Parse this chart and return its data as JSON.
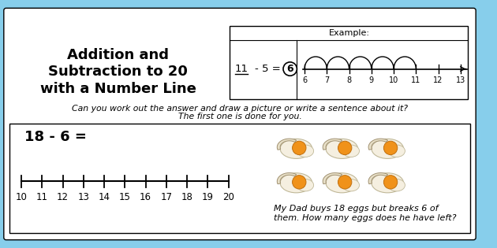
{
  "bg_color": "#87CEEB",
  "white": "#FFFFFF",
  "black": "#000000",
  "title_text_line1": "Addition and",
  "title_text_line2": "Subtraction to 20",
  "title_text_line3": "with a Number Line",
  "example_label": "Example:",
  "example_numberline": [
    6,
    7,
    8,
    9,
    10,
    11,
    12,
    13
  ],
  "subtitle1": "Can you work out the answer and draw a picture or write a sentence about it?",
  "subtitle2": "The first one is done for you.",
  "problem_equation": "18 - 6 =",
  "problem_numberline": [
    10,
    11,
    12,
    13,
    14,
    15,
    16,
    17,
    18,
    19,
    20
  ],
  "story_text_line1": "My Dad buys 18 eggs but breaks 6 of",
  "story_text_line2": "them. How many eggs does he have left?",
  "egg_yolk_color": "#F0921A",
  "egg_white_color": "#F5EFE0",
  "egg_shell_color": "#E8E0C8"
}
